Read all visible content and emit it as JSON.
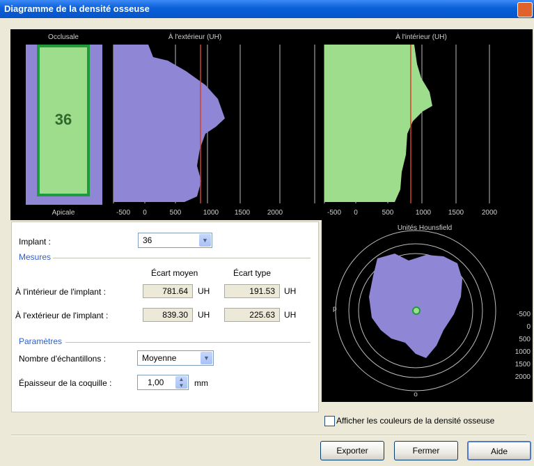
{
  "window": {
    "title": "Diagramme de la densité osseuse"
  },
  "plots": {
    "occlusale_label": "Occlusale",
    "apicale_label": "Apicale",
    "implant_number": "36",
    "outside_title": "À l'extérieur (UH)",
    "inside_title": "À l'intérieur (UH)",
    "x_ticks": [
      "-500",
      "0",
      "500",
      "1000",
      "1500",
      "2000"
    ],
    "fill_outside": "#8f86d6",
    "fill_inside": "#9edd8c",
    "threshold_color": "#d0402a"
  },
  "hounsfield": {
    "title": "Unités Hounsfield",
    "left_marker": "p",
    "bottom_marker": "o",
    "scale": [
      "-500",
      "0",
      "500",
      "1000",
      "1500",
      "2000"
    ]
  },
  "implant": {
    "label": "Implant :",
    "value": "36"
  },
  "mesures": {
    "group": "Mesures",
    "col_mean": "Écart moyen",
    "col_std": "Écart type",
    "row_inside": {
      "label": "À l'intérieur de l'implant :",
      "mean": "781.64",
      "mean_unit": "UH",
      "std": "191.53",
      "std_unit": "UH"
    },
    "row_outside": {
      "label": "À l'extérieur de l'implant :",
      "mean": "839.30",
      "mean_unit": "UH",
      "std": "225.63",
      "std_unit": "UH"
    }
  },
  "parametres": {
    "group": "Paramètres",
    "samples_label": "Nombre d'échantillons :",
    "samples_value": "Moyenne",
    "shell_label": "Épaisseur de la coquille :",
    "shell_value": "1,00",
    "shell_unit": "mm"
  },
  "checkbox": {
    "label": "Afficher les couleurs de la densité osseuse"
  },
  "buttons": {
    "export": "Exporter",
    "close": "Fermer",
    "help": "Aide"
  }
}
